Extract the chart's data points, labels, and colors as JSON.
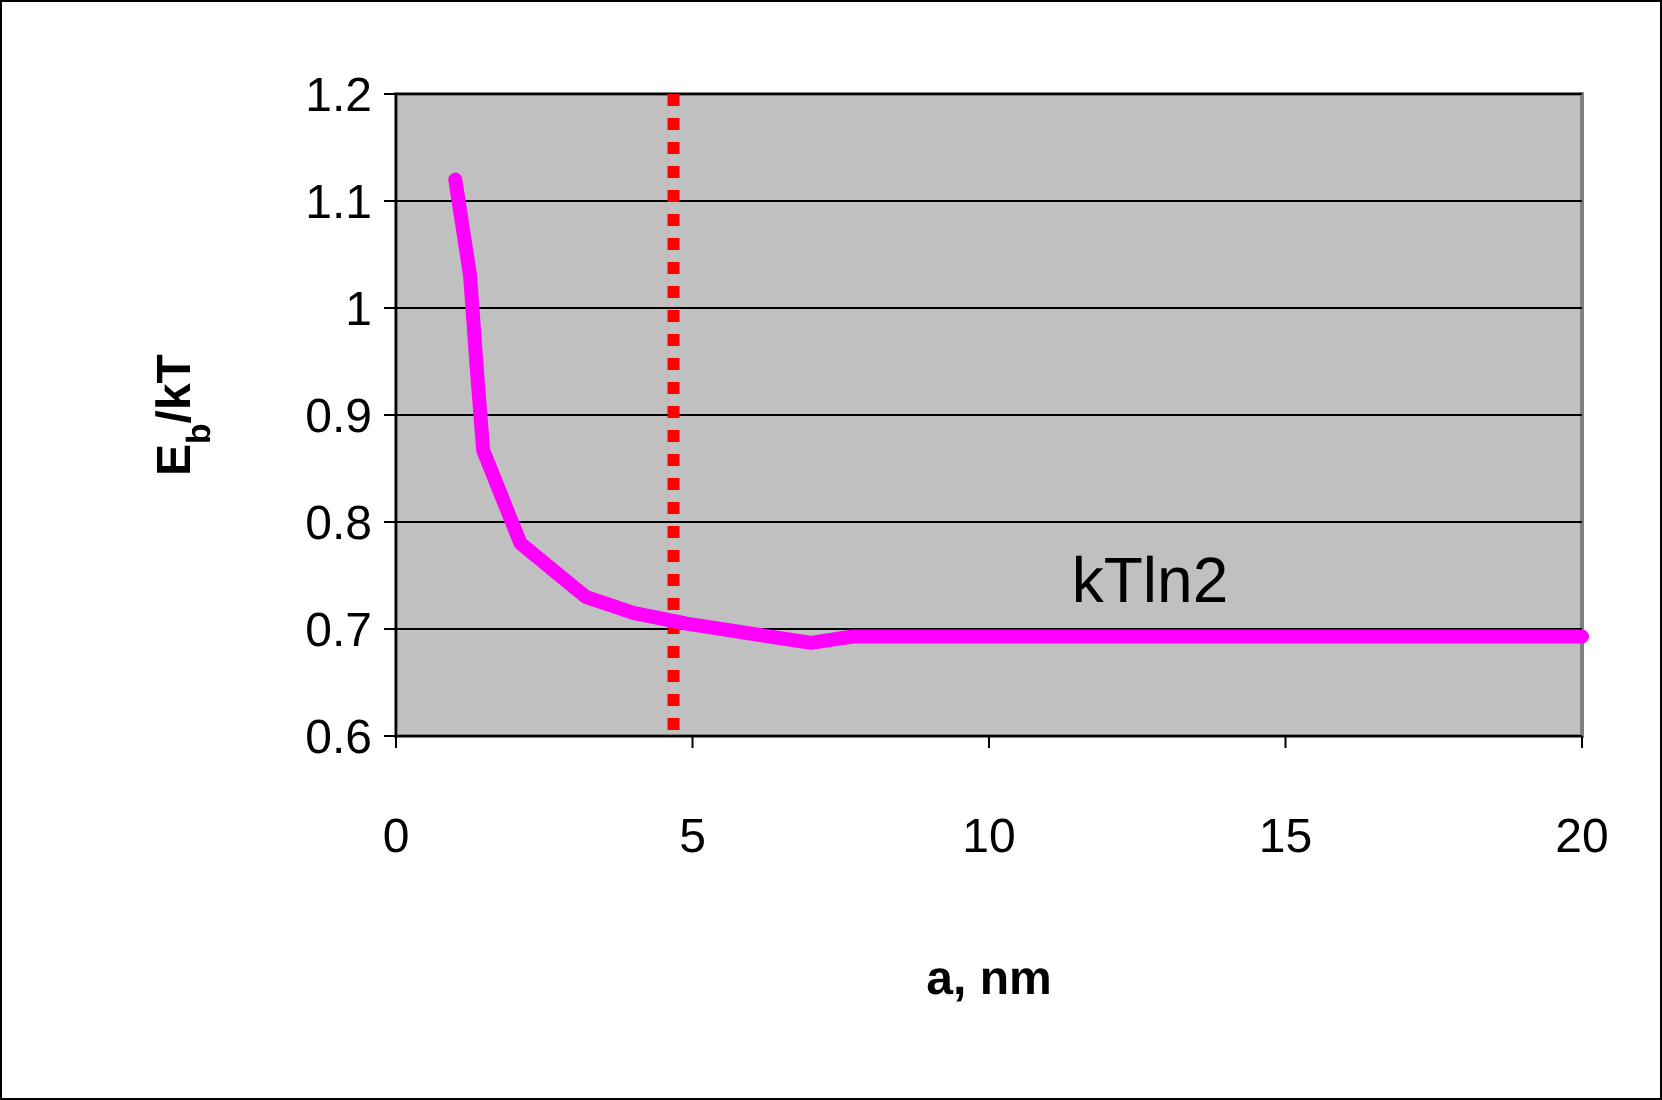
{
  "chart_data": {
    "type": "line",
    "xlabel": "a, nm",
    "ylabel": "E$_{b}$/kT",
    "x": [
      1,
      1.25,
      1.36,
      1.47,
      2.1,
      3.2,
      4,
      4.9,
      7,
      7.7,
      20
    ],
    "series": [
      {
        "color": "#ff00ff",
        "values": [
          1.12,
          1.03,
          0.945,
          0.867,
          0.78,
          0.73,
          0.715,
          0.705,
          0.687,
          0.693,
          0.693
        ]
      }
    ],
    "xlim": [
      0,
      20
    ],
    "xticks": [
      0,
      5,
      10,
      15,
      20
    ],
    "ylim": [
      0.6,
      1.2
    ],
    "yticks": [
      0.6,
      0.7,
      0.8,
      0.9,
      1,
      1.1,
      1.2
    ],
    "grid": "y",
    "marker": "none",
    "line_style": "solid",
    "ref_lines": [
      {
        "axis": "x",
        "value": 4.68,
        "color": "#ff0000",
        "line_style": "dotted"
      }
    ],
    "annotations": [
      "kTln2"
    ]
  }
}
